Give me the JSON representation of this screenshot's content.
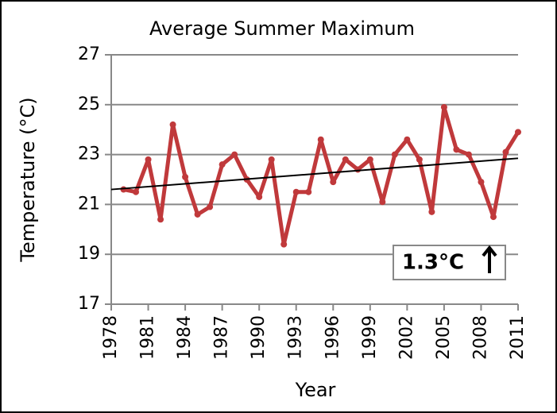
{
  "chart_data": {
    "type": "line",
    "title": "Average Summer Maximum",
    "x_label": "Year",
    "y_label": "Temperature (°C)",
    "x": [
      1979,
      1980,
      1981,
      1982,
      1983,
      1984,
      1985,
      1986,
      1987,
      1988,
      1989,
      1990,
      1991,
      1992,
      1993,
      1994,
      1995,
      1996,
      1997,
      1998,
      1999,
      2000,
      2001,
      2002,
      2003,
      2004,
      2005,
      2006,
      2007,
      2008,
      2009,
      2010,
      2011
    ],
    "series": [
      {
        "name": "Average Summer Maximum",
        "color": "#c0393b",
        "values": [
          21.6,
          21.5,
          22.8,
          20.4,
          24.2,
          22.1,
          20.6,
          20.9,
          22.6,
          23.0,
          22.0,
          21.3,
          22.8,
          19.4,
          21.5,
          21.5,
          23.6,
          21.9,
          22.8,
          22.4,
          22.8,
          21.1,
          23.0,
          23.6,
          22.8,
          20.7,
          24.9,
          23.2,
          23.0,
          21.9,
          20.5,
          23.1,
          23.9
        ]
      }
    ],
    "trend": {
      "x": [
        1978,
        2011
      ],
      "values": [
        21.6,
        22.85
      ],
      "color": "#000000"
    },
    "annotation": "1.3°C",
    "xlim": [
      1978,
      2011
    ],
    "xticks": [
      1978,
      1981,
      1984,
      1987,
      1990,
      1993,
      1996,
      1999,
      2002,
      2005,
      2008,
      2011
    ],
    "ylim": [
      17,
      27
    ],
    "yticks": [
      17,
      19,
      21,
      23,
      25,
      27
    ],
    "grid": true
  }
}
